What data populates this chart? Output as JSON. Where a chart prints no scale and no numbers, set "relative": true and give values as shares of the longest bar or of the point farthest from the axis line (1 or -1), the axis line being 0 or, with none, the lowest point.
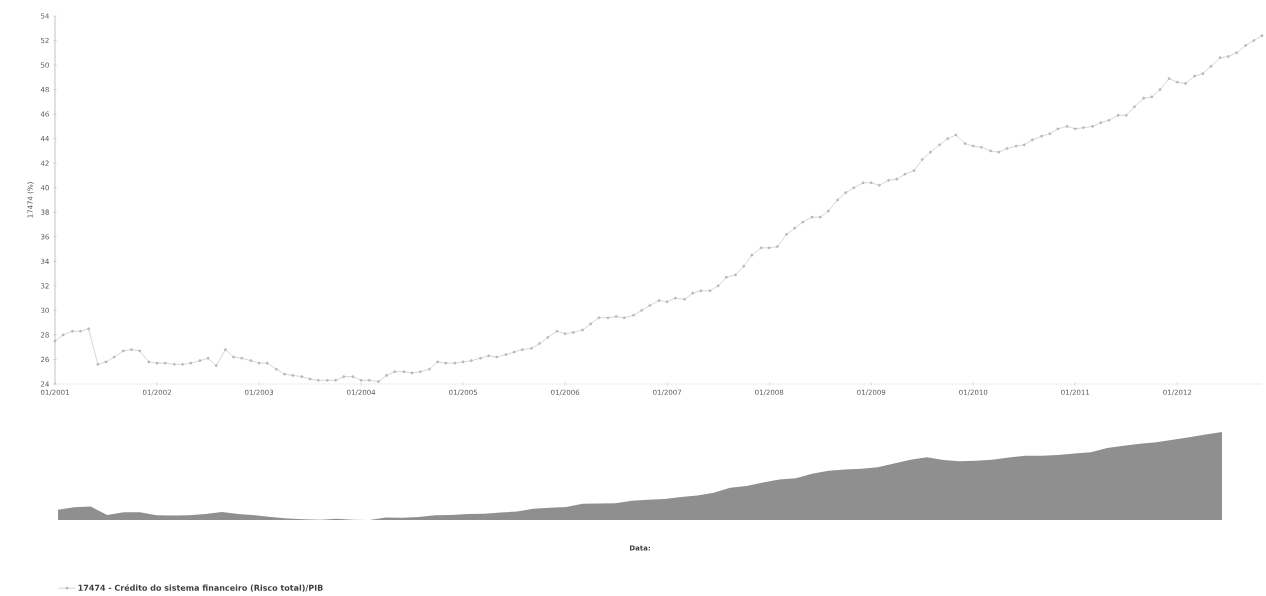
{
  "chart_data": [
    {
      "type": "line",
      "ylabel": "17474 (%)",
      "xlim": [
        "2001-01",
        "2012-11"
      ],
      "ylim": [
        24,
        54
      ],
      "yticks": [
        24,
        26,
        28,
        30,
        32,
        34,
        36,
        38,
        40,
        42,
        44,
        46,
        48,
        50,
        52,
        54
      ],
      "xticks": [
        {
          "value": "2001-01",
          "label": "01/2001"
        },
        {
          "value": "2002-01",
          "label": "01/2002"
        },
        {
          "value": "2003-01",
          "label": "01/2003"
        },
        {
          "value": "2004-01",
          "label": "01/2004"
        },
        {
          "value": "2005-01",
          "label": "01/2005"
        },
        {
          "value": "2006-01",
          "label": "01/2006"
        },
        {
          "value": "2007-01",
          "label": "01/2007"
        },
        {
          "value": "2008-01",
          "label": "01/2008"
        },
        {
          "value": "2009-01",
          "label": "01/2009"
        },
        {
          "value": "2010-01",
          "label": "01/2010"
        },
        {
          "value": "2011-01",
          "label": "01/2011"
        },
        {
          "value": "2012-01",
          "label": "01/2012"
        }
      ],
      "marker": "circle",
      "legend": "bottom",
      "x": [
        "2001-01",
        "2001-02",
        "2001-03",
        "2001-04",
        "2001-05",
        "2001-06",
        "2001-07",
        "2001-08",
        "2001-09",
        "2001-10",
        "2001-11",
        "2001-12",
        "2002-01",
        "2002-02",
        "2002-03",
        "2002-04",
        "2002-05",
        "2002-06",
        "2002-07",
        "2002-08",
        "2002-09",
        "2002-10",
        "2002-11",
        "2002-12",
        "2003-01",
        "2003-02",
        "2003-03",
        "2003-04",
        "2003-05",
        "2003-06",
        "2003-07",
        "2003-08",
        "2003-09",
        "2003-10",
        "2003-11",
        "2003-12",
        "2004-01",
        "2004-02",
        "2004-03",
        "2004-04",
        "2004-05",
        "2004-06",
        "2004-07",
        "2004-08",
        "2004-09",
        "2004-10",
        "2004-11",
        "2004-12",
        "2005-01",
        "2005-02",
        "2005-03",
        "2005-04",
        "2005-05",
        "2005-06",
        "2005-07",
        "2005-08",
        "2005-09",
        "2005-10",
        "2005-11",
        "2005-12",
        "2006-01",
        "2006-02",
        "2006-03",
        "2006-04",
        "2006-05",
        "2006-06",
        "2006-07",
        "2006-08",
        "2006-09",
        "2006-10",
        "2006-11",
        "2006-12",
        "2007-01",
        "2007-02",
        "2007-03",
        "2007-04",
        "2007-05",
        "2007-06",
        "2007-07",
        "2007-08",
        "2007-09",
        "2007-10",
        "2007-11",
        "2007-12",
        "2008-01",
        "2008-02",
        "2008-03",
        "2008-04",
        "2008-05",
        "2008-06",
        "2008-07",
        "2008-08",
        "2008-09",
        "2008-10",
        "2008-11",
        "2008-12",
        "2009-01",
        "2009-02",
        "2009-03",
        "2009-04",
        "2009-05",
        "2009-06",
        "2009-07",
        "2009-08",
        "2009-09",
        "2009-10",
        "2009-11",
        "2009-12",
        "2010-01",
        "2010-02",
        "2010-03",
        "2010-04",
        "2010-05",
        "2010-06",
        "2010-07",
        "2010-08",
        "2010-09",
        "2010-10",
        "2010-11",
        "2010-12",
        "2011-01",
        "2011-02",
        "2011-03",
        "2011-04",
        "2011-05",
        "2011-06",
        "2011-07",
        "2011-08",
        "2011-09",
        "2011-10",
        "2011-11",
        "2011-12",
        "2012-01",
        "2012-02",
        "2012-03",
        "2012-04",
        "2012-05",
        "2012-06",
        "2012-07",
        "2012-08",
        "2012-09",
        "2012-10",
        "2012-11"
      ],
      "series": [
        {
          "name": "17474 - Crédito do sistema financeiro (Risco total)/PIB",
          "color": "#9a9a9a",
          "values": [
            27.5,
            28.0,
            28.3,
            28.3,
            28.5,
            25.6,
            25.8,
            26.2,
            26.7,
            26.8,
            26.7,
            25.8,
            25.7,
            25.7,
            25.6,
            25.6,
            25.7,
            25.9,
            26.1,
            25.5,
            26.8,
            26.2,
            26.1,
            25.9,
            25.7,
            25.7,
            25.2,
            24.8,
            24.7,
            24.6,
            24.4,
            24.3,
            24.3,
            24.3,
            24.6,
            24.6,
            24.3,
            24.3,
            24.2,
            24.7,
            25.0,
            25.0,
            24.9,
            25.0,
            25.2,
            25.8,
            25.7,
            25.7,
            25.8,
            25.9,
            26.1,
            26.3,
            26.2,
            26.4,
            26.6,
            26.8,
            26.9,
            27.3,
            27.8,
            28.3,
            28.1,
            28.2,
            28.4,
            28.9,
            29.4,
            29.4,
            29.5,
            29.4,
            29.6,
            30.0,
            30.4,
            30.8,
            30.7,
            31.0,
            30.9,
            31.4,
            31.6,
            31.6,
            32.0,
            32.7,
            32.9,
            33.6,
            34.5,
            35.1,
            35.1,
            35.2,
            36.2,
            36.7,
            37.2,
            37.6,
            37.6,
            38.1,
            39.0,
            39.6,
            40.0,
            40.4,
            40.4,
            40.2,
            40.6,
            40.7,
            41.1,
            41.4,
            42.3,
            42.9,
            43.5,
            44.0,
            44.3,
            43.6,
            43.4,
            43.3,
            43.0,
            42.9,
            43.2,
            43.4,
            43.5,
            43.9,
            44.2,
            44.4,
            44.8,
            45.0,
            44.8,
            44.9,
            45.0,
            45.3,
            45.5,
            45.9,
            45.9,
            46.6,
            47.3,
            47.4,
            48.0,
            48.9,
            48.6,
            48.5,
            49.1,
            49.3,
            49.9,
            50.6,
            50.7,
            51.0,
            51.6,
            52.0,
            52.4
          ]
        }
      ]
    },
    {
      "type": "area",
      "relative": true,
      "xlabel": "Data:",
      "categories": [
        null,
        null,
        null,
        null,
        null,
        null,
        null,
        null,
        null,
        null,
        null,
        null,
        null,
        null,
        null,
        null,
        null,
        null,
        null,
        null,
        null,
        null,
        null,
        null,
        null,
        null,
        null,
        null,
        null,
        null,
        null,
        null,
        null,
        null,
        null,
        null,
        null,
        null,
        null,
        null,
        null,
        null,
        null,
        null,
        null,
        null,
        null,
        null,
        null,
        null,
        null,
        null,
        null,
        null,
        null,
        null,
        null,
        null,
        null,
        null,
        null,
        null,
        null,
        null,
        null,
        null,
        null,
        null,
        null,
        null,
        null,
        null
      ],
      "series": [
        {
          "color": "#8f8f8f",
          "values": [
            0.117,
            0.145,
            0.152,
            0.057,
            0.089,
            0.089,
            0.053,
            0.05,
            0.053,
            0.067,
            0.092,
            0.067,
            0.053,
            0.035,
            0.018,
            0.007,
            0.004,
            0.014,
            0.004,
            0,
            0.028,
            0.025,
            0.035,
            0.053,
            0.057,
            0.067,
            0.071,
            0.085,
            0.096,
            0.128,
            0.138,
            0.149,
            0.184,
            0.188,
            0.191,
            0.22,
            0.23,
            0.238,
            0.262,
            0.277,
            0.309,
            0.365,
            0.387,
            0.426,
            0.461,
            0.475,
            0.525,
            0.56,
            0.574,
            0.582,
            0.599,
            0.642,
            0.684,
            0.713,
            0.681,
            0.667,
            0.674,
            0.684,
            0.709,
            0.73,
            0.73,
            0.738,
            0.755,
            0.77,
            0.819,
            0.844,
            0.865,
            0.883,
            0.911,
            0.94,
            0.972,
            1
          ]
        }
      ]
    }
  ]
}
